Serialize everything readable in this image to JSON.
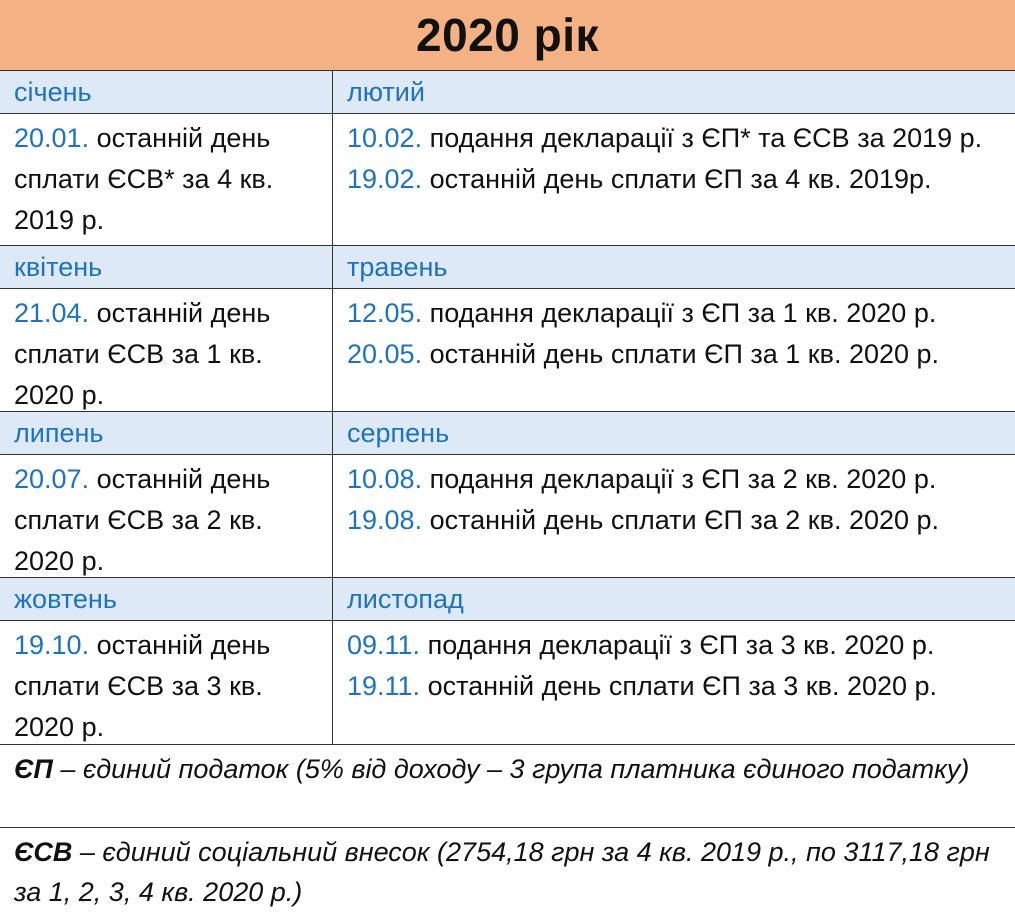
{
  "title": "2020 рік",
  "rows": [
    {
      "left": {
        "month": "січень",
        "entries": [
          {
            "date": "20.01.",
            "text": " останній день сплати ЄСВ* за 4 кв. 2019 р."
          }
        ]
      },
      "right": {
        "month": "лютий",
        "entries": [
          {
            "date": "10.02.",
            "text": " подання декларації з ЄП* та ЄСВ за 2019 р."
          },
          {
            "date": "19.02.",
            "text": " останній день сплати ЄП за 4 кв. 2019р."
          }
        ]
      }
    },
    {
      "left": {
        "month": "квітень",
        "entries": [
          {
            "date": "21.04.",
            "text": " останній день сплати ЄСВ за 1 кв. 2020 р."
          }
        ]
      },
      "right": {
        "month": "травень",
        "entries": [
          {
            "date": "12.05.",
            "text": " подання декларації з ЄП за 1 кв. 2020 р."
          },
          {
            "date": "20.05.",
            "text": " останній день сплати ЄП за 1 кв. 2020 р."
          }
        ]
      }
    },
    {
      "left": {
        "month": "липень",
        "entries": [
          {
            "date": "20.07.",
            "text": " останній день сплати ЄСВ за 2 кв. 2020 р."
          }
        ]
      },
      "right": {
        "month": "серпень",
        "entries": [
          {
            "date": "10.08.",
            "text": " подання декларації з ЄП за 2 кв. 2020 р."
          },
          {
            "date": "19.08.",
            "text": " останній день сплати ЄП за 2 кв. 2020 р."
          }
        ]
      }
    },
    {
      "left": {
        "month": "жовтень",
        "entries": [
          {
            "date": "19.10.",
            "text": " останній день сплати ЄСВ за 3 кв. 2020 р."
          }
        ]
      },
      "right": {
        "month": "листопад",
        "entries": [
          {
            "date": "09.11.",
            "text": " подання декларації з ЄП за 3 кв. 2020 р."
          },
          {
            "date": "19.11.",
            "text": " останній день сплати ЄП за 3 кв. 2020 р."
          }
        ]
      }
    }
  ],
  "notes": [
    {
      "term": "ЄП",
      "text": " – єдиний податок (5% від доходу – 3 група платника єдиного податку)"
    },
    {
      "term": "ЄСВ",
      "text": " – єдиний соціальний внесок (2754,18 грн за 4 кв. 2019 р., по 3117,18 грн за 1, 2, 3, 4 кв. 2020 р.)"
    }
  ],
  "colors": {
    "title_bg": "#f4b183",
    "month_bg": "#dde9f6",
    "accent_blue": "#1e73be"
  }
}
